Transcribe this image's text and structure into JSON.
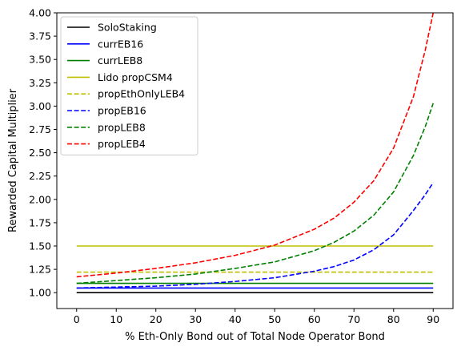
{
  "chart_data": {
    "type": "line",
    "xlabel": "% Eth-Only Bond out of Total Node Operator Bond",
    "ylabel": "Rewarded Capital Multiplier",
    "xlim": [
      -5,
      95
    ],
    "ylim": [
      0.83,
      4.0
    ],
    "xticks": [
      0,
      10,
      20,
      30,
      40,
      50,
      60,
      70,
      80,
      90
    ],
    "yticks": [
      1.0,
      1.25,
      1.5,
      1.75,
      2.0,
      2.25,
      2.5,
      2.75,
      3.0,
      3.25,
      3.5,
      3.75,
      4.0
    ],
    "ytick_labels": [
      "1.00",
      "1.25",
      "1.50",
      "1.75",
      "2.00",
      "2.25",
      "2.50",
      "2.75",
      "3.00",
      "3.25",
      "3.50",
      "3.75",
      "4.00"
    ],
    "grid": false,
    "legend_position": "top-left",
    "x": [
      0,
      10,
      20,
      30,
      40,
      50,
      60,
      65,
      70,
      75,
      80,
      85,
      88,
      90
    ],
    "series": [
      {
        "name": "SoloStaking",
        "color": "#000000",
        "dash": "solid",
        "values": [
          1.0,
          1.0,
          1.0,
          1.0,
          1.0,
          1.0,
          1.0,
          1.0,
          1.0,
          1.0,
          1.0,
          1.0,
          1.0,
          1.0
        ]
      },
      {
        "name": "currEB16",
        "color": "#0000ff",
        "dash": "solid",
        "values": [
          1.05,
          1.05,
          1.05,
          1.05,
          1.05,
          1.05,
          1.05,
          1.05,
          1.05,
          1.05,
          1.05,
          1.05,
          1.05,
          1.05
        ]
      },
      {
        "name": "currLEB8",
        "color": "#008000",
        "dash": "solid",
        "values": [
          1.1,
          1.1,
          1.1,
          1.1,
          1.1,
          1.1,
          1.1,
          1.1,
          1.1,
          1.1,
          1.1,
          1.1,
          1.1,
          1.1
        ]
      },
      {
        "name": "Lido propCSM4",
        "color": "#bfbf00",
        "dash": "solid",
        "values": [
          1.5,
          1.5,
          1.5,
          1.5,
          1.5,
          1.5,
          1.5,
          1.5,
          1.5,
          1.5,
          1.5,
          1.5,
          1.5,
          1.5
        ]
      },
      {
        "name": "propEthOnlyLEB4",
        "color": "#bfbf00",
        "dash": "dashed",
        "values": [
          1.22,
          1.22,
          1.22,
          1.22,
          1.22,
          1.22,
          1.22,
          1.22,
          1.22,
          1.22,
          1.22,
          1.22,
          1.22,
          1.22
        ]
      },
      {
        "name": "propEB16",
        "color": "#0000ff",
        "dash": "dashed",
        "values": [
          1.05,
          1.06,
          1.07,
          1.09,
          1.12,
          1.16,
          1.23,
          1.28,
          1.35,
          1.46,
          1.62,
          1.88,
          2.05,
          2.18
        ]
      },
      {
        "name": "propLEB8",
        "color": "#008000",
        "dash": "dashed",
        "values": [
          1.1,
          1.13,
          1.16,
          1.2,
          1.26,
          1.33,
          1.45,
          1.54,
          1.66,
          1.83,
          2.08,
          2.47,
          2.78,
          3.03
        ]
      },
      {
        "name": "propLEB4",
        "color": "#ff0000",
        "dash": "dashed",
        "values": [
          1.17,
          1.21,
          1.26,
          1.32,
          1.4,
          1.51,
          1.68,
          1.8,
          1.97,
          2.2,
          2.55,
          3.1,
          3.6,
          4.0
        ]
      }
    ]
  }
}
